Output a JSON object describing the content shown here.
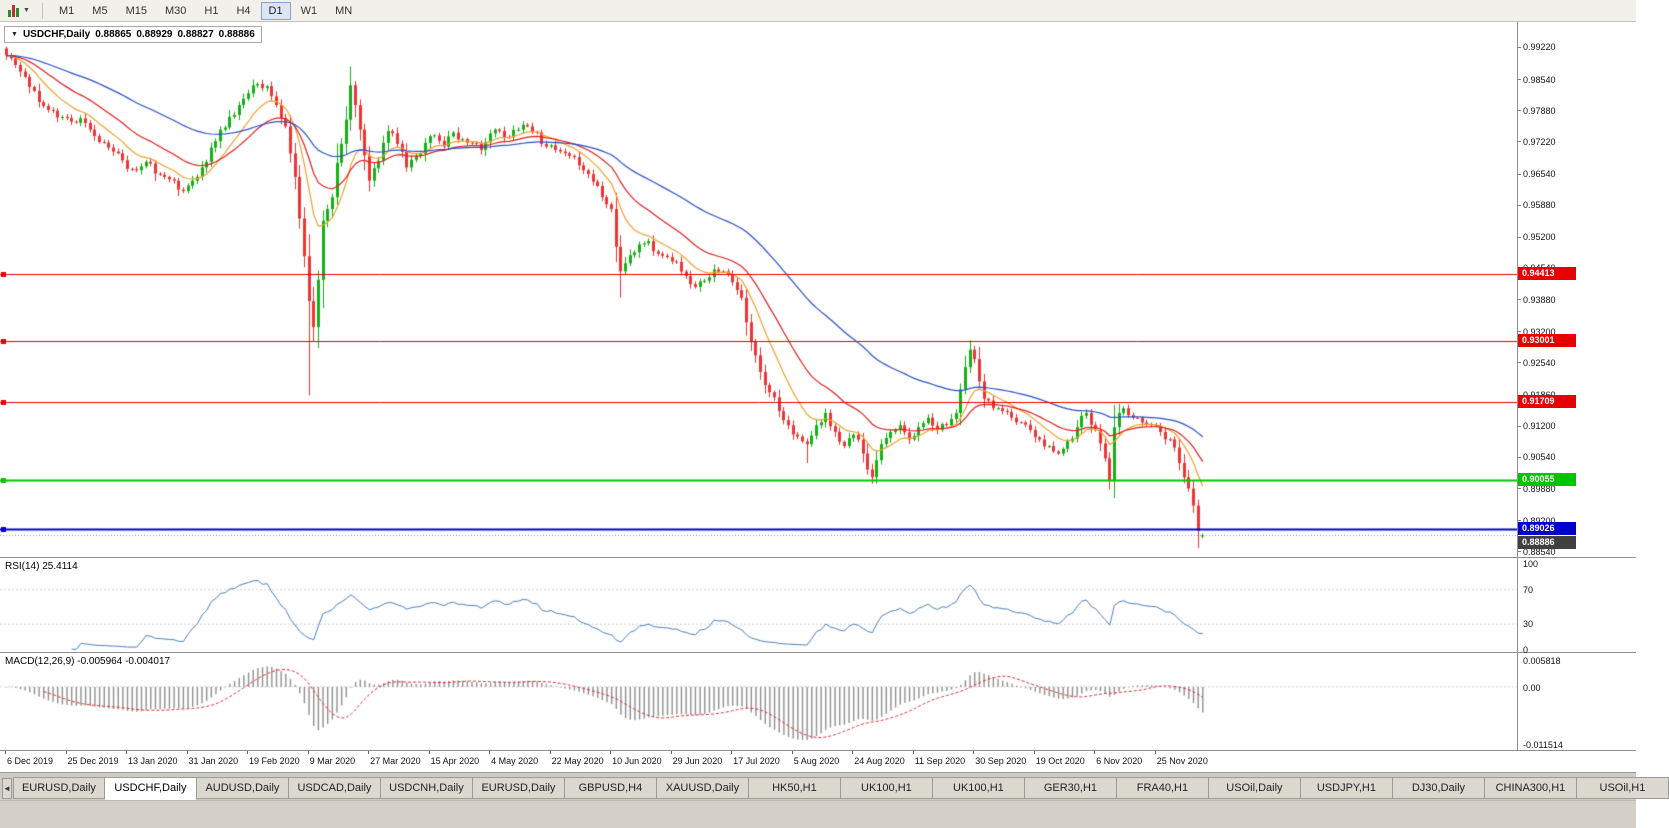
{
  "toolbar": {
    "timeframes": [
      "M1",
      "M5",
      "M15",
      "M30",
      "H1",
      "H4",
      "D1",
      "W1",
      "MN"
    ],
    "active": "D1"
  },
  "chart": {
    "symbol_title": "USDCHF,Daily",
    "open": "0.88865",
    "high": "0.88929",
    "low": "0.88827",
    "close": "0.88886"
  },
  "rsi_panel": {
    "label": "RSI(14) 25.4114",
    "scale": [
      {
        "v": 100,
        "label": "100"
      },
      {
        "v": 70,
        "label": "70"
      },
      {
        "v": 30,
        "label": "30"
      },
      {
        "v": 0,
        "label": "0"
      }
    ]
  },
  "macd_panel": {
    "label": "MACD(12,26,9) -0.005964 -0.004017",
    "scale_top": "0.005818",
    "scale_zero": "0.00",
    "scale_bottom": "-0.011514"
  },
  "tabs": {
    "active_index": 1,
    "scroll_left_glyph": "◄",
    "items": [
      "EURUSD,Daily",
      "USDCHF,Daily",
      "AUDUSD,Daily",
      "USDCAD,Daily",
      "USDCNH,Daily",
      "EURUSD,Daily",
      "GBPUSD,H4",
      "XAUUSD,Daily",
      "HK50,H1",
      "UK100,H1",
      "UK100,H1",
      "GER30,H1",
      "FRA40,H1",
      "USOil,Daily",
      "USDJPY,H1",
      "DJ30,Daily",
      "CHINA300,H1",
      "USOil,H1"
    ]
  },
  "chart_data": {
    "type": "candlestick",
    "symbol": "USDCHF",
    "timeframe": "Daily",
    "last_candle": {
      "open": 0.88865,
      "high": 0.88929,
      "low": 0.88827,
      "close": 0.88886
    },
    "y_range": [
      0.8843,
      0.9976
    ],
    "candle_count": 258,
    "candles_per_label": 13,
    "up_color": "#14b014",
    "down_color": "#ee3434",
    "x_labels": [
      "6 Dec 2019",
      "25 Dec 2019",
      "13 Jan 2020",
      "31 Jan 2020",
      "19 Feb 2020",
      "9 Mar 2020",
      "27 Mar 2020",
      "15 Apr 2020",
      "4 May 2020",
      "22 May 2020",
      "10 Jun 2020",
      "29 Jun 2020",
      "17 Jul 2020",
      "5 Aug 2020",
      "24 Aug 2020",
      "11 Sep 2020",
      "30 Sep 2020",
      "19 Oct 2020",
      "6 Nov 2020",
      "25 Nov 2020"
    ],
    "y_ticks": [
      "0.99220",
      "0.98540",
      "0.97880",
      "0.97220",
      "0.96540",
      "0.95880",
      "0.95200",
      "0.94540",
      "0.93880",
      "0.93200",
      "0.92540",
      "0.91860",
      "0.91200",
      "0.90540",
      "0.89880",
      "0.89200",
      "0.88540"
    ],
    "close_anchors": [
      [
        0,
        0.9905
      ],
      [
        2,
        0.9885
      ],
      [
        4,
        0.986
      ],
      [
        6,
        0.983
      ],
      [
        8,
        0.9798
      ],
      [
        10,
        0.9788
      ],
      [
        12,
        0.9775
      ],
      [
        14,
        0.9765
      ],
      [
        16,
        0.9772
      ],
      [
        18,
        0.9748
      ],
      [
        20,
        0.9722
      ],
      [
        22,
        0.971
      ],
      [
        24,
        0.9698
      ],
      [
        26,
        0.9665
      ],
      [
        28,
        0.9662
      ],
      [
        30,
        0.968
      ],
      [
        32,
        0.9655
      ],
      [
        34,
        0.9648
      ],
      [
        36,
        0.964
      ],
      [
        38,
        0.9618
      ],
      [
        40,
        0.964
      ],
      [
        42,
        0.9668
      ],
      [
        44,
        0.971
      ],
      [
        46,
        0.9748
      ],
      [
        48,
        0.9775
      ],
      [
        50,
        0.98
      ],
      [
        52,
        0.9825
      ],
      [
        54,
        0.9845
      ],
      [
        56,
        0.984
      ],
      [
        58,
        0.98
      ],
      [
        60,
        0.9755
      ],
      [
        62,
        0.9648
      ],
      [
        63,
        0.956
      ],
      [
        64,
        0.948
      ],
      [
        65,
        0.9385
      ],
      [
        66,
        0.933
      ],
      [
        67,
        0.943
      ],
      [
        68,
        0.9555
      ],
      [
        69,
        0.958
      ],
      [
        70,
        0.9605
      ],
      [
        72,
        0.9718
      ],
      [
        74,
        0.9842
      ],
      [
        75,
        0.98
      ],
      [
        76,
        0.9748
      ],
      [
        78,
        0.964
      ],
      [
        80,
        0.9682
      ],
      [
        82,
        0.9745
      ],
      [
        84,
        0.9718
      ],
      [
        86,
        0.9668
      ],
      [
        88,
        0.9692
      ],
      [
        90,
        0.972
      ],
      [
        92,
        0.9736
      ],
      [
        94,
        0.9712
      ],
      [
        96,
        0.9742
      ],
      [
        98,
        0.9728
      ],
      [
        100,
        0.972
      ],
      [
        102,
        0.9705
      ],
      [
        104,
        0.974
      ],
      [
        106,
        0.9745
      ],
      [
        108,
        0.9732
      ],
      [
        110,
        0.9748
      ],
      [
        112,
        0.9755
      ],
      [
        114,
        0.9742
      ],
      [
        116,
        0.9712
      ],
      [
        118,
        0.9705
      ],
      [
        120,
        0.9698
      ],
      [
        122,
        0.969
      ],
      [
        124,
        0.9662
      ],
      [
        126,
        0.9638
      ],
      [
        128,
        0.9605
      ],
      [
        130,
        0.958
      ],
      [
        131,
        0.95
      ],
      [
        132,
        0.9448
      ],
      [
        133,
        0.9465
      ],
      [
        134,
        0.9482
      ],
      [
        136,
        0.9505
      ],
      [
        138,
        0.9512
      ],
      [
        140,
        0.9485
      ],
      [
        142,
        0.9478
      ],
      [
        144,
        0.9468
      ],
      [
        146,
        0.9438
      ],
      [
        148,
        0.9415
      ],
      [
        150,
        0.9428
      ],
      [
        152,
        0.9452
      ],
      [
        154,
        0.9448
      ],
      [
        156,
        0.9425
      ],
      [
        158,
        0.9392
      ],
      [
        159,
        0.934
      ],
      [
        160,
        0.9298
      ],
      [
        161,
        0.927
      ],
      [
        162,
        0.9235
      ],
      [
        164,
        0.9192
      ],
      [
        166,
        0.9152
      ],
      [
        168,
        0.9122
      ],
      [
        170,
        0.9098
      ],
      [
        172,
        0.9082
      ],
      [
        174,
        0.9122
      ],
      [
        176,
        0.9148
      ],
      [
        178,
        0.9108
      ],
      [
        180,
        0.9078
      ],
      [
        182,
        0.9102
      ],
      [
        184,
        0.9062
      ],
      [
        186,
        0.9012
      ],
      [
        187,
        0.9048
      ],
      [
        188,
        0.9082
      ],
      [
        190,
        0.9108
      ],
      [
        192,
        0.9122
      ],
      [
        194,
        0.9092
      ],
      [
        196,
        0.9118
      ],
      [
        198,
        0.9138
      ],
      [
        200,
        0.9112
      ],
      [
        202,
        0.9122
      ],
      [
        204,
        0.9148
      ],
      [
        205,
        0.9198
      ],
      [
        206,
        0.9245
      ],
      [
        207,
        0.9282
      ],
      [
        208,
        0.9262
      ],
      [
        209,
        0.9215
      ],
      [
        210,
        0.9178
      ],
      [
        212,
        0.9158
      ],
      [
        214,
        0.9152
      ],
      [
        216,
        0.9138
      ],
      [
        218,
        0.9128
      ],
      [
        220,
        0.9112
      ],
      [
        222,
        0.9092
      ],
      [
        224,
        0.9078
      ],
      [
        226,
        0.9062
      ],
      [
        228,
        0.9088
      ],
      [
        230,
        0.9118
      ],
      [
        232,
        0.9148
      ],
      [
        234,
        0.9112
      ],
      [
        236,
        0.9052
      ],
      [
        237,
        0.9005
      ],
      [
        238,
        0.9118
      ],
      [
        239,
        0.9148
      ],
      [
        240,
        0.9158
      ],
      [
        242,
        0.9138
      ],
      [
        244,
        0.9128
      ],
      [
        246,
        0.9122
      ],
      [
        248,
        0.9108
      ],
      [
        250,
        0.9092
      ],
      [
        252,
        0.9042
      ],
      [
        253,
        0.9012
      ],
      [
        254,
        0.8988
      ],
      [
        255,
        0.8952
      ],
      [
        256,
        0.8898
      ],
      [
        257,
        0.88886
      ]
    ],
    "spikes": [
      {
        "i": 65,
        "low": 0.9185
      },
      {
        "i": 74,
        "high": 0.9882
      },
      {
        "i": 132,
        "low": 0.9392
      },
      {
        "i": 172,
        "low": 0.9042
      },
      {
        "i": 186,
        "low": 0.8998
      },
      {
        "i": 207,
        "high": 0.9302
      },
      {
        "i": 237,
        "low": 0.8986
      },
      {
        "i": 256,
        "low": 0.8862
      }
    ],
    "horizontal_lines": [
      {
        "price": 0.94413,
        "label": "0.94413",
        "color": "#e60000",
        "width": 1
      },
      {
        "price": 0.93001,
        "label": "0.93001",
        "color": "#e60000",
        "width": 1
      },
      {
        "price": 0.91709,
        "label": "0.91709",
        "color": "#e60000",
        "width": 1
      },
      {
        "price": 0.90055,
        "label": "0.90055",
        "color": "#00c400",
        "width": 2
      },
      {
        "price": 0.89026,
        "label": "0.89026",
        "color": "#0000cc",
        "width": 2
      }
    ],
    "current_price": {
      "price": 0.88886,
      "label": "0.88886",
      "color": "#404040",
      "tag_dy": 8
    },
    "moving_averages": [
      {
        "name": "ma-fast",
        "period": 10,
        "color": "#f0a030"
      },
      {
        "name": "ma-medium",
        "period": 22,
        "color": "#e02020"
      },
      {
        "name": "ma-slow",
        "period": 55,
        "color": "#2a50c8"
      }
    ],
    "rsi": {
      "period": 14,
      "current": 25.4114,
      "levels": [
        30,
        70
      ],
      "range": [
        0,
        100
      ],
      "color": "#4a7ebd"
    },
    "macd": {
      "fast": 12,
      "slow": 26,
      "signal": 9,
      "current": -0.005964,
      "signal_current": -0.004017,
      "range": [
        -0.011514,
        0.005818
      ],
      "histogram_color": "#8f8f8f",
      "signal_color": "#e03030"
    }
  }
}
